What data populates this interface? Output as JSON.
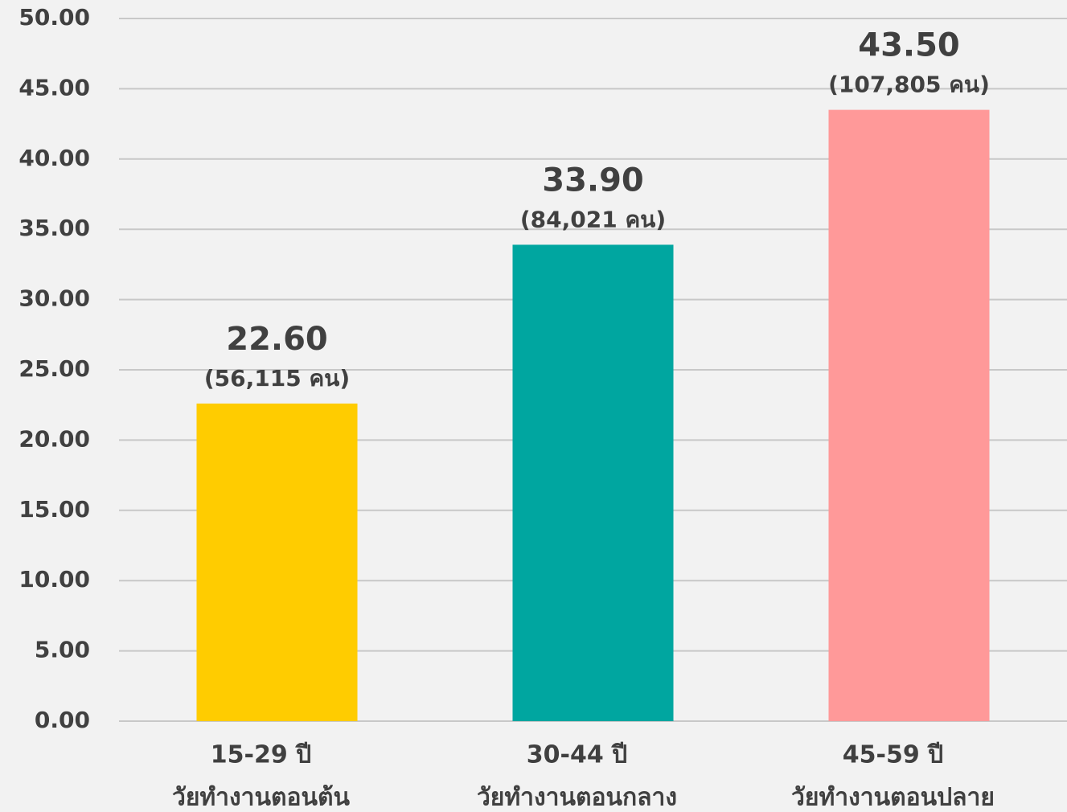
{
  "chart_data": {
    "type": "bar",
    "categories": [
      "15-29 ปี",
      "30-44 ปี",
      "45-59 ปี"
    ],
    "category_sublabels": [
      "วัยทำงานตอนต้น",
      "วัยทำงานตอนกลาง",
      "วัยทำงานตอนปลาย"
    ],
    "values": [
      22.6,
      33.9,
      43.5
    ],
    "value_labels": [
      "22.60",
      "33.90",
      "43.50"
    ],
    "count_labels": [
      "(56,115 คน)",
      "(84,021 คน)",
      "(107,805 คน)"
    ],
    "colors": [
      "#ffcc00",
      "#00a6a0",
      "#ff9999"
    ],
    "ylim": [
      0,
      50
    ],
    "yticks": [
      {
        "value": 0,
        "label": "0.00"
      },
      {
        "value": 5,
        "label": "5.00"
      },
      {
        "value": 10,
        "label": "10.00"
      },
      {
        "value": 15,
        "label": "15.00"
      },
      {
        "value": 20,
        "label": "20.00"
      },
      {
        "value": 25,
        "label": "25.00"
      },
      {
        "value": 30,
        "label": "30.00"
      },
      {
        "value": 35,
        "label": "35.00"
      },
      {
        "value": 40,
        "label": "40.00"
      },
      {
        "value": 45,
        "label": "45.00"
      },
      {
        "value": 50,
        "label": "50.00"
      }
    ],
    "grid": true
  }
}
